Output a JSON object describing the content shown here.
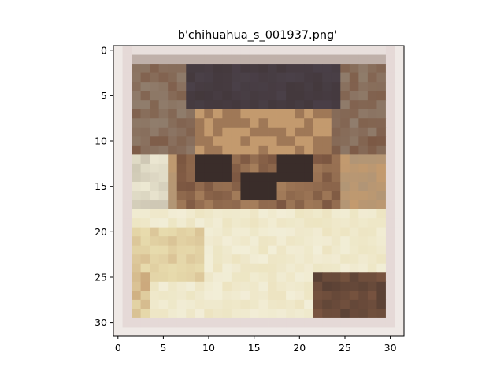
{
  "figure": {
    "title": "b'chihuahua_s_001937.png'",
    "image_size": [
      32,
      32
    ],
    "image_description": "Low-resolution (32x32) pixelated photo of a chihuahua's face: dark head/ears at top, tan fur around the eyes, dark eyes and nose in the center, cream/white chest in the lower half, pale whitish border around the image.",
    "x_ticks": [
      "0",
      "5",
      "10",
      "15",
      "20",
      "25",
      "30"
    ],
    "y_ticks": [
      "0",
      "5",
      "10",
      "15",
      "20",
      "25",
      "30"
    ],
    "xlim": [
      -0.5,
      31.5
    ],
    "ylim": [
      31.5,
      -0.5
    ],
    "colors": {
      "border": "#efe9e6",
      "dark_head": "#4a4048",
      "tan_fur": "#c39a6e",
      "brown": "#7a5540",
      "dark_eye": "#3a2d2a",
      "cream_chest": "#f2eed8",
      "pale_yellow": "#e8dcae",
      "grey": "#9a8f80"
    }
  }
}
